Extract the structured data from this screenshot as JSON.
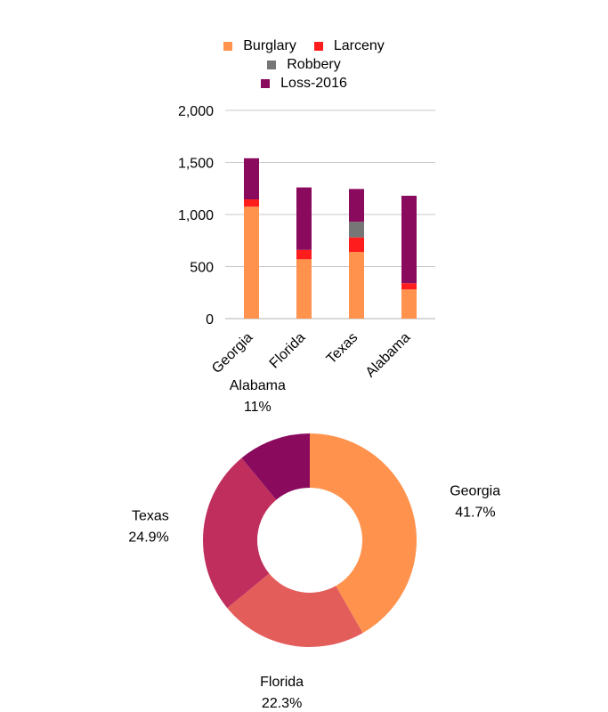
{
  "chart_data": [
    {
      "type": "bar",
      "stacked": true,
      "categories": [
        "Georgia",
        "Florida",
        "Texas",
        "Alabama"
      ],
      "series": [
        {
          "name": "Burglary",
          "color": "#ff934e",
          "values": [
            1075,
            570,
            640,
            280
          ]
        },
        {
          "name": "Larceny",
          "color": "#ff1c1c",
          "values": [
            70,
            90,
            140,
            60
          ]
        },
        {
          "name": "Robbery",
          "color": "#767676",
          "values": [
            0,
            0,
            150,
            0
          ]
        },
        {
          "name": "Loss-2016",
          "color": "#8a0b5e",
          "values": [
            395,
            600,
            315,
            840
          ]
        }
      ],
      "ylim": [
        0,
        2000
      ],
      "yticks": [
        0,
        500,
        1000,
        1500,
        2000
      ],
      "ytick_labels": [
        "0",
        "500",
        "1,000",
        "1,500",
        "2,000"
      ],
      "grid": true,
      "legend_position": "top"
    },
    {
      "type": "pie",
      "donut": true,
      "slices": [
        {
          "label": "Georgia",
          "value": 41.7,
          "value_label": "41.7%",
          "color": "#ff934e"
        },
        {
          "label": "Florida",
          "value": 22.3,
          "value_label": "22.3%",
          "color": "#e35d5b"
        },
        {
          "label": "Texas",
          "value": 24.9,
          "value_label": "24.9%",
          "color": "#bf2e5c"
        },
        {
          "label": "Alabama",
          "value": 11,
          "value_label": "11%",
          "color": "#8a0b5e"
        }
      ]
    }
  ]
}
